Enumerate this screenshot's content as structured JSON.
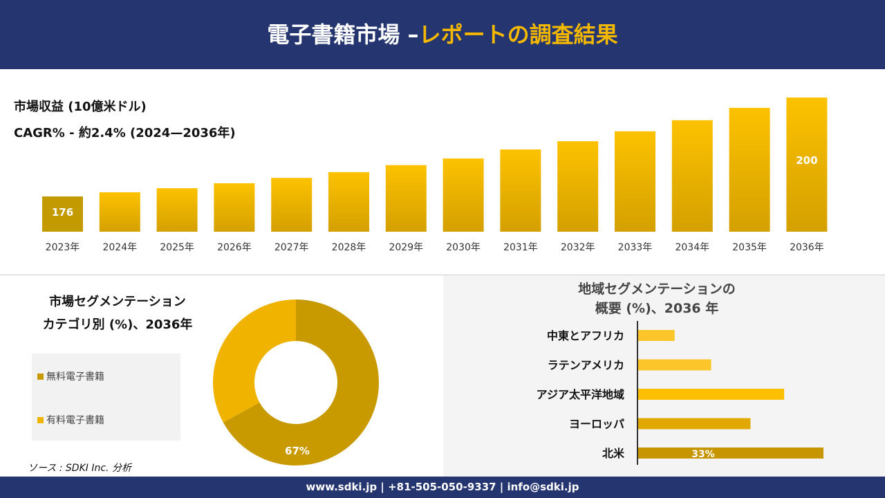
{
  "header": {
    "title_main": "電子書籍市場 –",
    "title_accent": "レポートの調査結果"
  },
  "chart_data": [
    {
      "type": "bar",
      "title": "市場収益 (10億米ドル)",
      "subtitle": "CAGR% - 約2.4% (2024—2036年)",
      "categories": [
        "2023年",
        "2024年",
        "2025年",
        "2026年",
        "2027年",
        "2028年",
        "2029年",
        "2030年",
        "2031年",
        "2032年",
        "2033年",
        "2034年",
        "2035年",
        "2036年"
      ],
      "values": [
        176,
        177,
        178,
        179.2,
        180.5,
        181.9,
        183.6,
        185.2,
        187.4,
        189.4,
        191.8,
        194.5,
        197.5,
        200
      ],
      "data_labels": {
        "0": "176",
        "13": "200"
      },
      "color": "#f5b800"
    },
    {
      "type": "pie",
      "title": "市場セグメンテーション カテゴリ別 (%)、2036年",
      "title_lines": [
        "市場セグメンテーション",
        "カテゴリ別 (%)、2036年"
      ],
      "categories": [
        "無料電子書籍",
        "有料電子書籍"
      ],
      "values": [
        67,
        33
      ],
      "data_labels": [
        "67%",
        ""
      ],
      "colors": [
        "#c89a00",
        "#f0b400"
      ],
      "legend": "left"
    },
    {
      "type": "bar",
      "orientation": "horizontal",
      "title": "地域セグメンテーションの 概要 (%)、2036 年",
      "title_lines": [
        "地域セグメンテーションの",
        "概要 (%)、2036 年"
      ],
      "categories": [
        "中東とアフリカ",
        "ラテンアメリカ",
        "アジア太平洋地域",
        "ヨーロッパ",
        "北米"
      ],
      "values": [
        6.5,
        13,
        26,
        20,
        33
      ],
      "data_labels": [
        "",
        "",
        "",
        "",
        "33%"
      ],
      "colors": [
        "#fcc62a",
        "#fcc62a",
        "#fdc000",
        "#e0a800",
        "#c69500"
      ]
    }
  ],
  "source": "ソース : SDKI Inc. 分析",
  "footer": "www.sdki.jp | +81-505-050-9337 | info@sdki.jp"
}
